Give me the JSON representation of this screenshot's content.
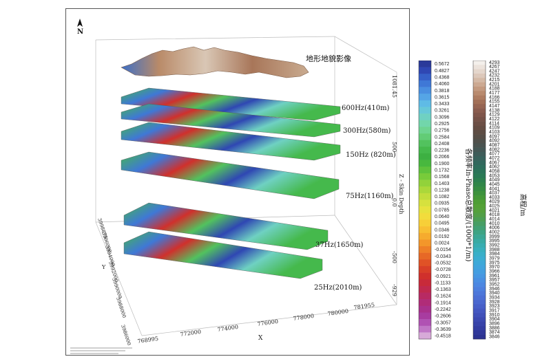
{
  "north_label": "N",
  "terrain_label": "地形地貌影像",
  "frequency_layers": [
    {
      "label": "600Hz(410m)"
    },
    {
      "label": "300Hz(580m)"
    },
    {
      "label": "150Hz (820m)"
    },
    {
      "label": "75Hz(1160m)"
    },
    {
      "label": "37Hz(1650m)"
    },
    {
      "label": "25Hz(2010m)"
    }
  ],
  "x_axis": {
    "title": "X",
    "ticks": [
      "768995",
      "772000",
      "774000",
      "776000",
      "778000",
      "780000",
      "781955"
    ]
  },
  "y_axis": {
    "title": "Y",
    "ticks": [
      "3986000",
      "3988000",
      "3990000",
      "3992000",
      "3994000",
      "3996000",
      "3998875"
    ]
  },
  "z_axis": {
    "title": "Z - Skin Depth",
    "ticks": [
      "1081.45",
      "500",
      "0.0",
      "-500",
      "-929"
    ]
  },
  "inphase_colorbar": {
    "title": "各频率In-Phase总散度/(1000*1/m)",
    "values": [
      "0.5672",
      "0.4827",
      "0.4368",
      "0.4060",
      "0.3818",
      "0.3615",
      "0.3433",
      "0.3261",
      "0.3096",
      "0.2925",
      "0.2756",
      "0.2584",
      "0.2408",
      "0.2236",
      "0.2066",
      "0.1900",
      "0.1732",
      "0.1568",
      "0.1403",
      "0.1238",
      "0.1082",
      "0.0935",
      "0.0785",
      "0.0640",
      "0.0495",
      "0.0346",
      "0.0192",
      "0.0024",
      "-0.0154",
      "-0.0343",
      "-0.0532",
      "-0.0728",
      "-0.0921",
      "-0.1133",
      "-0.1363",
      "-0.1624",
      "-0.1914",
      "-0.2242",
      "-0.2606",
      "-0.3057",
      "-0.3639",
      "-0.4518"
    ],
    "colors": [
      "#2a3a9a",
      "#2f47b3",
      "#3660c8",
      "#3f78d6",
      "#4a8fe0",
      "#55a5e6",
      "#5fbbe6",
      "#67c8d8",
      "#6fd1c2",
      "#72d6ab",
      "#6ed491",
      "#62cc76",
      "#52c25e",
      "#45b94c",
      "#3db042",
      "#48b83e",
      "#5fc23c",
      "#78cb3a",
      "#92d23a",
      "#abd83a",
      "#c2dd3c",
      "#d6e13e",
      "#e7e23e",
      "#f2dc3c",
      "#f7cf38",
      "#f8bf33",
      "#f6ab2e",
      "#f3962a",
      "#ee7f27",
      "#e76826",
      "#e05226",
      "#d83f28",
      "#d0302c",
      "#c82a3a",
      "#c0294e",
      "#b82a63",
      "#b02c78",
      "#a9318c",
      "#a83ca0",
      "#b052b3",
      "#c077c6",
      "#d7aad8"
    ]
  },
  "elevation_colorbar": {
    "title": "高程/m",
    "values": [
      "4293",
      "4267",
      "4247",
      "4232",
      "4215",
      "4201",
      "4188",
      "4177",
      "4166",
      "4155",
      "4147",
      "4138",
      "4129",
      "4122",
      "4114",
      "4109",
      "4103",
      "4097",
      "4092",
      "4087",
      "4082",
      "4077",
      "4072",
      "4067",
      "4062",
      "4058",
      "4053",
      "4049",
      "4045",
      "4041",
      "4037",
      "4033",
      "4029",
      "4025",
      "4021",
      "4018",
      "4014",
      "4010",
      "4006",
      "4002",
      "3999",
      "3995",
      "3992",
      "3988",
      "3984",
      "3979",
      "3975",
      "3970",
      "3966",
      "3961",
      "3957",
      "3952",
      "3946",
      "3940",
      "3934",
      "3928",
      "3923",
      "3917",
      "3910",
      "3904",
      "3896",
      "3886",
      "3874",
      "3846"
    ],
    "colors": [
      "#f4f0ec",
      "#ece3dc",
      "#e4d6cc",
      "#dcc8ba",
      "#d4b9a6",
      "#cca992",
      "#c39a80",
      "#b98b6f",
      "#ae7d62",
      "#a27058",
      "#966553",
      "#8a5c4f",
      "#7f564b",
      "#755248",
      "#6c4f45",
      "#644d43",
      "#5d4d44",
      "#564e47",
      "#50504b",
      "#4a5350",
      "#445755",
      "#3e5c59",
      "#38625c",
      "#32685d",
      "#2e6e5c",
      "#2b7459",
      "#2a7a55",
      "#2c804f",
      "#308648",
      "#368c42",
      "#3d923d",
      "#459838",
      "#4e9e35",
      "#54a136",
      "#55a03c",
      "#529f47",
      "#4d9e55",
      "#479e64",
      "#42a074",
      "#3ea384",
      "#3ba694",
      "#39aaa3",
      "#38adb1",
      "#38afbd",
      "#39afc8",
      "#3badd1",
      "#3ea9d8",
      "#41a4dd",
      "#449ee0",
      "#4797e2",
      "#4a8fe2",
      "#4c87e1",
      "#4d7fde",
      "#4d77da",
      "#4c6fd5",
      "#4a67cf",
      "#475fc8",
      "#4457c1",
      "#4050b9",
      "#3c49b1",
      "#3843a9",
      "#343da1",
      "#303899",
      "#2c3391"
    ]
  }
}
